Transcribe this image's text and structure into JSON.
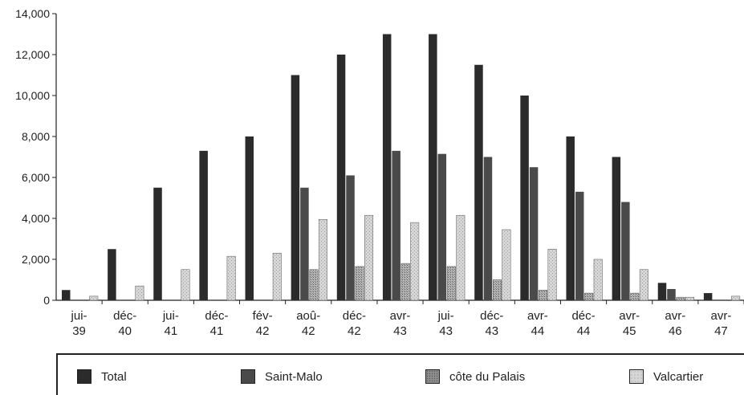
{
  "chart_data": {
    "type": "bar",
    "title": "",
    "xlabel": "",
    "ylabel": "",
    "ylim": [
      0,
      14000
    ],
    "yticks": [
      "0",
      "2,000",
      "4,000",
      "6,000",
      "8,000",
      "10,000",
      "12,000",
      "14,000"
    ],
    "categories": [
      [
        "jui-",
        "39"
      ],
      [
        "déc-",
        "40"
      ],
      [
        "jui-",
        "41"
      ],
      [
        "déc-",
        "41"
      ],
      [
        "fév-",
        "42"
      ],
      [
        "aoû-",
        "42"
      ],
      [
        "déc-",
        "42"
      ],
      [
        "avr-",
        "43"
      ],
      [
        "jui-",
        "43"
      ],
      [
        "déc-",
        "43"
      ],
      [
        "avr-",
        "44"
      ],
      [
        "déc-",
        "44"
      ],
      [
        "avr-",
        "45"
      ],
      [
        "avr-",
        "46"
      ],
      [
        "avr-",
        "47"
      ]
    ],
    "series": [
      {
        "name": "Total",
        "color": "#2b2b2b",
        "values": [
          500,
          2500,
          5500,
          7300,
          8000,
          11000,
          12000,
          13000,
          13000,
          11500,
          10000,
          8000,
          7000,
          850,
          350
        ]
      },
      {
        "name": "Saint-Malo",
        "color": "#4a4a4a",
        "values": [
          0,
          0,
          0,
          0,
          0,
          5500,
          6100,
          7300,
          7150,
          7000,
          6500,
          5300,
          4800,
          550,
          0
        ]
      },
      {
        "name": "côte du Palais",
        "color": "#8c8c8c",
        "values": [
          0,
          0,
          0,
          0,
          0,
          1500,
          1650,
          1800,
          1650,
          1000,
          500,
          350,
          350,
          150,
          0
        ]
      },
      {
        "name": "Valcartier",
        "color": "#cfcfcf",
        "values": [
          200,
          700,
          1500,
          2150,
          2300,
          3950,
          4150,
          3800,
          4150,
          3450,
          2500,
          2000,
          1500,
          150,
          200
        ]
      }
    ],
    "grid": false,
    "legend_position": "bottom"
  }
}
